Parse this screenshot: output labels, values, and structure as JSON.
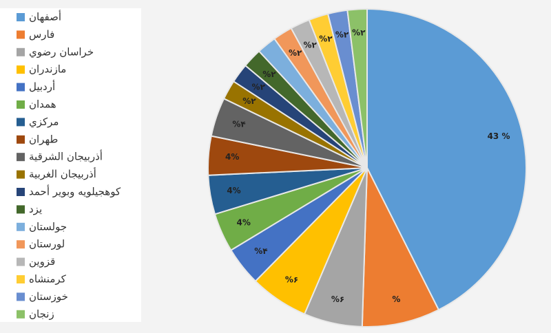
{
  "chart_data": {
    "type": "pie",
    "categories": [
      "أصفهان",
      "فارس",
      "خراسان رضوي",
      "مازندران",
      "أردبيل",
      "همدان",
      "مركزي",
      "طهران",
      "أذربيجان الشرقية",
      "أذربيجان الغربية",
      "كوهجيلويه وبوير أحمد",
      "يزد",
      "جولستان",
      "لورستان",
      "قزوين",
      "كرمنشاه",
      "خوزستان",
      "زنجان"
    ],
    "values": [
      43,
      8,
      6,
      6,
      4,
      4,
      4,
      4,
      4,
      2,
      2,
      2,
      2,
      2,
      2,
      2,
      2,
      2
    ],
    "value_labels": [
      "43 %",
      "%",
      "%۶",
      "%۶",
      "%۴",
      "4%",
      "4%",
      "4%",
      "%۴",
      "%۲",
      "%۲",
      "%۲",
      null,
      "%۲",
      "%۲",
      "%۲",
      "%۲",
      "%۲"
    ],
    "colors": [
      "#5b9bd5",
      "#ed7d31",
      "#a5a5a5",
      "#ffc000",
      "#4472c4",
      "#70ad47",
      "#255e91",
      "#9e480e",
      "#636363",
      "#997300",
      "#264478",
      "#43682b",
      "#7cafdd",
      "#f1975a",
      "#b7b7b7",
      "#ffcd33",
      "#698ed0",
      "#8cc168"
    ],
    "legend": "left"
  }
}
